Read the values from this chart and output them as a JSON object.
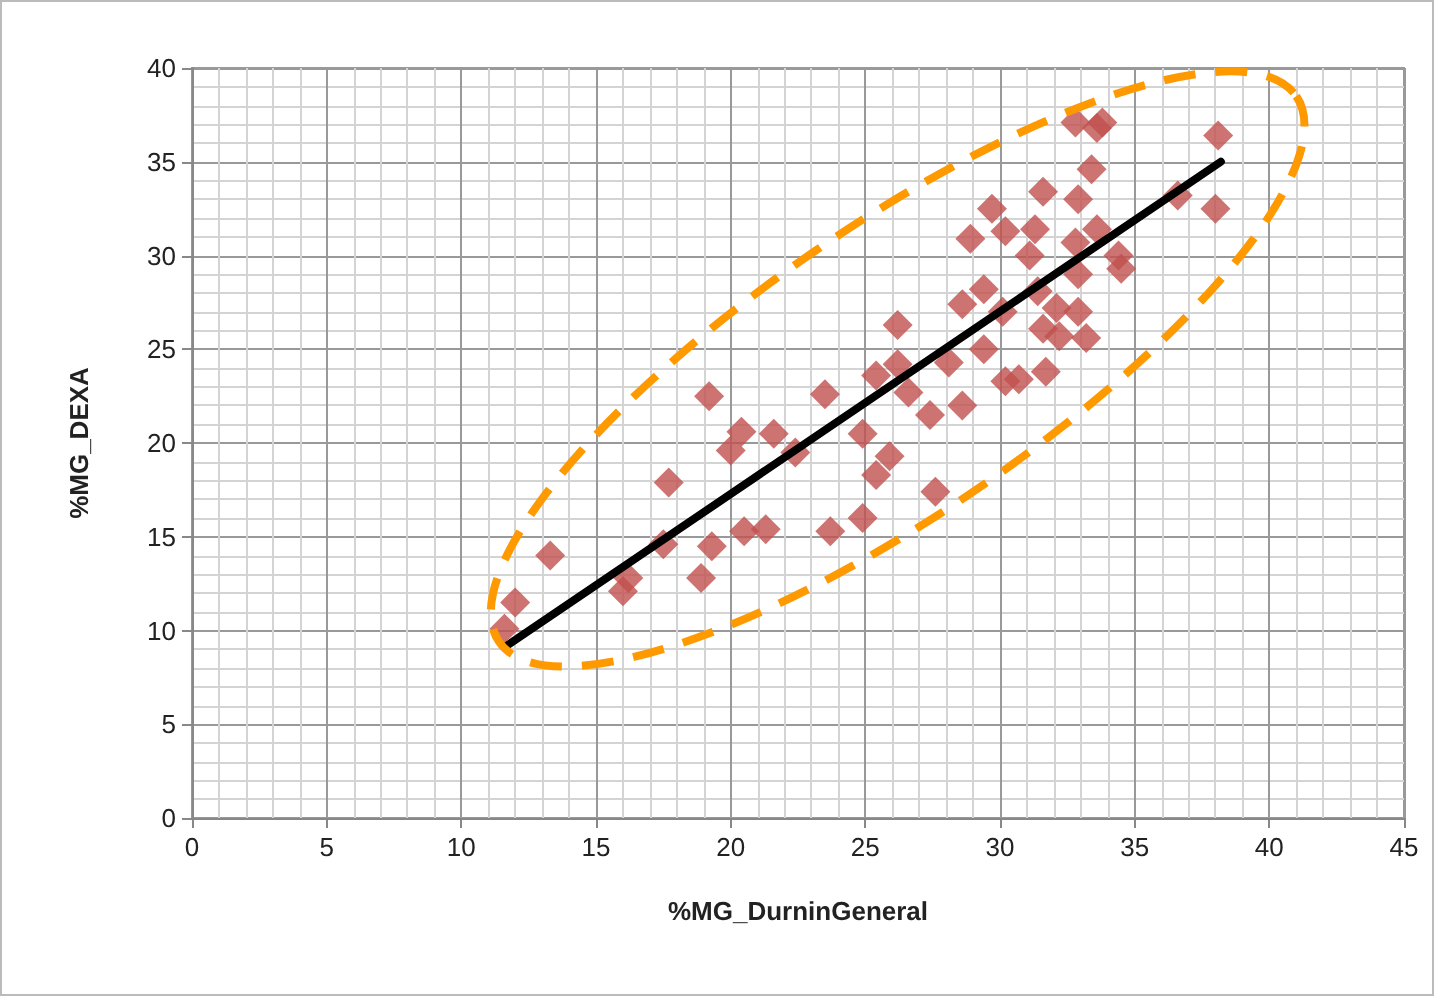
{
  "chart_data": {
    "type": "scatter",
    "xlabel": "%MG_DurninGeneral",
    "ylabel": "%MG_DEXA",
    "xlim": [
      0,
      45
    ],
    "xticks": [
      0,
      5,
      10,
      15,
      20,
      25,
      30,
      35,
      40,
      45
    ],
    "ylim": [
      0,
      40
    ],
    "yticks": [
      0,
      5,
      10,
      15,
      20,
      25,
      30,
      35,
      40
    ],
    "grid": true,
    "series": [
      {
        "color": "#c0504d",
        "marker": "diamond",
        "x": [
          11.6,
          12.0,
          13.3,
          16.0,
          16.2,
          17.5,
          17.7,
          18.9,
          19.3,
          19.2,
          20.0,
          20.4,
          20.5,
          21.3,
          21.6,
          22.4,
          23.5,
          23.7,
          24.9,
          24.9,
          25.4,
          25.4,
          25.9,
          26.2,
          26.2,
          26.6,
          27.4,
          27.6,
          28.1,
          28.6,
          28.6,
          28.9,
          29.4,
          29.4,
          29.7,
          30.1,
          30.2,
          30.2,
          30.7,
          31.1,
          31.3,
          31.6,
          31.4,
          31.7,
          31.6,
          32.1,
          32.2,
          32.8,
          32.9,
          32.9,
          32.9,
          33.2,
          33.4,
          33.6,
          34.4,
          34.5,
          36.6,
          38.0,
          32.8,
          33.8,
          33.6,
          38.1
        ],
        "values": [
          10.1,
          11.5,
          14.0,
          12.1,
          12.8,
          14.6,
          17.9,
          12.8,
          14.5,
          22.5,
          19.6,
          20.6,
          15.3,
          15.4,
          20.5,
          19.5,
          22.6,
          15.3,
          16.0,
          20.5,
          23.6,
          18.3,
          19.3,
          26.3,
          24.2,
          22.7,
          21.5,
          17.4,
          24.3,
          22.0,
          27.4,
          30.9,
          28.2,
          25.0,
          32.5,
          27.0,
          31.3,
          23.3,
          23.4,
          30.0,
          31.4,
          33.4,
          28.1,
          23.8,
          26.1,
          27.2,
          25.7,
          30.7,
          33.0,
          27.0,
          29.0,
          25.6,
          34.6,
          31.4,
          30.0,
          29.3,
          33.2,
          32.5,
          37.1,
          37.1,
          36.8,
          36.4
        ]
      },
      {
        "type": "line",
        "color": "#000000",
        "x": [
          11.7,
          38.2
        ],
        "values": [
          9.2,
          35.0
        ]
      }
    ]
  }
}
